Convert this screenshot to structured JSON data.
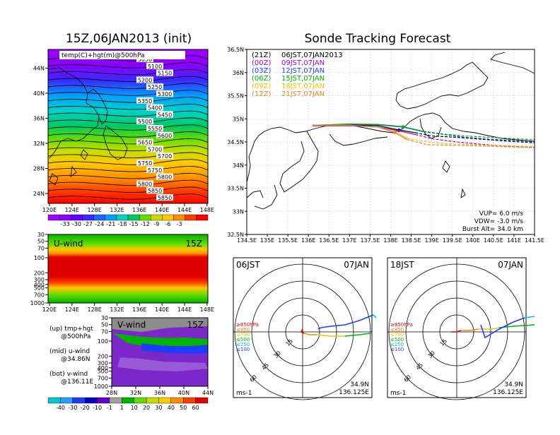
{
  "titles": {
    "main": "Sonde Tracking Forecast",
    "init": "15Z,06JAN2013 (init)"
  },
  "colors": {
    "purple": "#a000c8",
    "blue": "#1e3cff",
    "green": "#00b400",
    "yellow": "#e6c800",
    "orange": "#f08228",
    "black": "#000000",
    "red": "#e00000",
    "cyan": "#00c8c8"
  },
  "map500": {
    "label": "temp(C)+hgt(m)@500hPa",
    "x_ticks": [
      "120E",
      "124E",
      "128E",
      "132E",
      "136E",
      "140E",
      "144E",
      "148E"
    ],
    "y_ticks": [
      "24N",
      "28N",
      "32N",
      "36N",
      "40N",
      "44N"
    ],
    "contours": [
      "5050",
      "5100",
      "5150",
      "5200",
      "5250",
      "5300",
      "5350",
      "5400",
      "5450",
      "5500",
      "5550",
      "5600",
      "5650",
      "5700",
      "5700",
      "5750",
      "5750",
      "5800",
      "5800",
      "5850",
      "5850"
    ],
    "cbar_labels": [
      "-33",
      "-30",
      "-27",
      "-24",
      "-21",
      "-18",
      "-15",
      "-12",
      "-9",
      "-6",
      "-3"
    ],
    "cbar_colors": [
      "#a000ff",
      "#8c00ff",
      "#6400ff",
      "#3c28ff",
      "#1e64ff",
      "#00a0ff",
      "#00d2c8",
      "#00c864",
      "#64dc00",
      "#c8dc00",
      "#ffc800",
      "#ff8c00",
      "#ff3c00",
      "#ff0000"
    ]
  },
  "uwind": {
    "label": "U-wind",
    "time": "15Z",
    "x_ticks": [
      "120E",
      "124E",
      "128E",
      "132E",
      "136E",
      "140E",
      "144E",
      "148E"
    ],
    "y_ticks": [
      "30",
      "50",
      "70",
      "100",
      "200",
      "300",
      "400",
      "500",
      "700",
      "1000"
    ]
  },
  "vwind": {
    "label": "V-wind",
    "time": "15Z",
    "x_ticks": [
      "28N",
      "32N",
      "36N",
      "40N",
      "44N"
    ],
    "y_ticks": [
      "30",
      "50",
      "70",
      "100",
      "200",
      "300",
      "400",
      "500",
      "700",
      "1000"
    ]
  },
  "panel_notes": [
    {
      "line1": "(up) tmp+hgt",
      "line2": "@500hPa"
    },
    {
      "line1": "(mid) u-wind",
      "line2": "@34.86N"
    },
    {
      "line1": "(bot) v-wind",
      "line2": "@136.11E"
    }
  ],
  "wind_cbar": {
    "labels": [
      "-40",
      "-30",
      "-20",
      "-10",
      "-1",
      "1",
      "10",
      "20",
      "30",
      "40",
      "50",
      "60"
    ],
    "colors": [
      "#00c8c8",
      "#28a0ff",
      "#1e3cff",
      "#0000c8",
      "#6400c8",
      "#a0a0a0",
      "#00b400",
      "#64dc00",
      "#c8dc00",
      "#ffc800",
      "#ff8c00",
      "#ff3c00",
      "#e00000"
    ]
  },
  "track": {
    "x_ticks": [
      "134.5E",
      "135E",
      "135.5E",
      "136E",
      "136.5E",
      "137E",
      "137.5E",
      "138E",
      "138.5E",
      "139E",
      "139.5E",
      "140E",
      "140.5E",
      "141E",
      "141.5E"
    ],
    "y_ticks": [
      "36.5N",
      "36N",
      "35.5N",
      "35N",
      "34.5N",
      "34N",
      "33.5N",
      "33N",
      "32.5N"
    ],
    "launches": [
      {
        "code": "(21Z)",
        "time": "06JST,07JAN2013",
        "color": "#000000"
      },
      {
        "code": "(00Z)",
        "time": "09JST,07JAN",
        "color": "#a000c8"
      },
      {
        "code": "(03Z)",
        "time": "12JST,07JAN",
        "color": "#1e3cff"
      },
      {
        "code": "(06Z)",
        "time": "15JST,07JAN",
        "color": "#00b400"
      },
      {
        "code": "(09Z)",
        "time": "18JST,07JAN",
        "color": "#e6c800"
      },
      {
        "code": "(12Z)",
        "time": "21JST,07JAN",
        "color": "#f08228"
      }
    ],
    "params": [
      "VUP=  6.0  m/s",
      "VDW= -3.0  m/s",
      "Burst Alt=  34.0  km"
    ]
  },
  "chart_data": [
    {
      "type": "line",
      "title": "Sonde Tracking Forecast",
      "xlim": [
        134.5,
        141.5
      ],
      "ylim": [
        32.5,
        36.5
      ],
      "series": [
        {
          "name": "(21Z) 06JST,07JAN2013",
          "x": [
            136.1,
            137.0,
            137.7,
            138.2,
            138.6,
            139.0,
            139.6,
            140.2,
            140.8,
            141.5
          ],
          "y": [
            34.86,
            34.87,
            34.85,
            34.76,
            34.7,
            34.63,
            34.6,
            34.56,
            34.52,
            34.48
          ]
        },
        {
          "name": "(00Z) 09JST,07JAN",
          "x": [
            136.1,
            137.0,
            137.7,
            138.2,
            138.6,
            139.0,
            139.6,
            140.2,
            140.8,
            141.5
          ],
          "y": [
            34.85,
            34.85,
            34.82,
            34.74,
            34.66,
            34.57,
            34.5,
            34.45,
            34.41,
            34.38
          ]
        },
        {
          "name": "(03Z) 12JST,07JAN",
          "x": [
            136.1,
            137.0,
            137.7,
            138.3,
            138.8,
            139.3,
            139.8,
            140.4,
            141.0,
            141.5
          ],
          "y": [
            34.86,
            34.88,
            34.87,
            34.82,
            34.72,
            34.66,
            34.6,
            34.56,
            34.53,
            34.5
          ]
        },
        {
          "name": "(06Z) 15JST,07JAN",
          "x": [
            136.1,
            137.0,
            137.7,
            138.3,
            138.8,
            139.3,
            139.8,
            140.4,
            141.0,
            141.5
          ],
          "y": [
            34.86,
            34.89,
            34.88,
            34.83,
            34.73,
            34.67,
            34.63,
            34.6,
            34.57,
            34.55
          ]
        },
        {
          "name": "(09Z) 18JST,07JAN",
          "x": [
            136.1,
            137.0,
            137.7,
            138.1,
            138.4,
            138.9,
            139.4,
            140.0,
            140.6,
            141.5
          ],
          "y": [
            34.86,
            34.86,
            34.82,
            34.72,
            34.58,
            34.5,
            34.46,
            34.44,
            34.42,
            34.4
          ]
        },
        {
          "name": "(12Z) 21JST,07JAN",
          "x": [
            136.1,
            137.0,
            137.7,
            138.1,
            138.4,
            138.9,
            139.4,
            140.0,
            140.6,
            141.5
          ],
          "y": [
            34.86,
            34.86,
            34.82,
            34.7,
            34.55,
            34.44,
            34.43,
            34.42,
            34.4,
            34.38
          ]
        }
      ],
      "annotations": [
        "VUP=  6.0  m/s",
        "VDW= -3.0  m/s",
        "Burst Alt=  34.0  km"
      ]
    }
  ],
  "hodographs": [
    {
      "left": "06JST",
      "right": "07JAN",
      "ring_labels": [
        "15",
        "30",
        "45",
        "60"
      ],
      "unit": "ms-1",
      "lat": "34.9N",
      "lon": "136.125E",
      "legend": [
        {
          "t": "≥850hPa",
          "c": "#e00000"
        },
        {
          "t": "≤850",
          "c": "#f08228"
        },
        {
          "t": "≤700",
          "c": "#e6c800"
        },
        {
          "t": "≤500",
          "c": "#00b400"
        },
        {
          "t": "≤250",
          "c": "#00c8c8"
        },
        {
          "t": "≤100",
          "c": "#1e3cff"
        }
      ]
    },
    {
      "left": "18JST",
      "right": "07JAN",
      "ring_labels": [
        "15",
        "30",
        "45",
        "60"
      ],
      "unit": "ms-1",
      "lat": "34.9N",
      "lon": "136.125E",
      "legend": [
        {
          "t": "≥850hPa",
          "c": "#e00000"
        },
        {
          "t": "≤850",
          "c": "#f08228"
        },
        {
          "t": "≤700",
          "c": "#e6c800"
        },
        {
          "t": "≤500",
          "c": "#00b400"
        },
        {
          "t": "≤250",
          "c": "#00c8c8"
        },
        {
          "t": "≤100",
          "c": "#1e3cff"
        }
      ]
    }
  ]
}
